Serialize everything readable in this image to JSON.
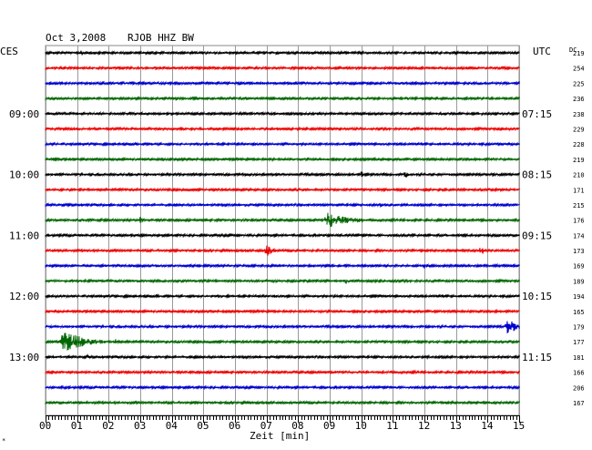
{
  "header": {
    "date": "Oct 3,2008",
    "station": "RJOB HHZ BW",
    "left_tz": "CES",
    "right_tz": "UTC",
    "dc_label": "DC",
    "corner_mark": "*"
  },
  "chart_data": {
    "type": "line",
    "title": "Oct 3,2008   RJOB HHZ BW",
    "xlabel": "Zeit [min]",
    "x_ticks": [
      "00",
      "01",
      "02",
      "03",
      "04",
      "05",
      "06",
      "07",
      "08",
      "09",
      "10",
      "11",
      "12",
      "13",
      "14",
      "15"
    ],
    "xlim": [
      0,
      15
    ],
    "grid": true,
    "trace_colors": [
      "#000000",
      "#ee0000",
      "#0000cc",
      "#006600"
    ],
    "local_hour_labels": [
      {
        "row": 4,
        "text": "09:00"
      },
      {
        "row": 8,
        "text": "10:00"
      },
      {
        "row": 12,
        "text": "11:00"
      },
      {
        "row": 16,
        "text": "12:00"
      },
      {
        "row": 20,
        "text": "13:00"
      }
    ],
    "utc_hour_labels": [
      {
        "row": 4,
        "text": "07:15"
      },
      {
        "row": 8,
        "text": "08:15"
      },
      {
        "row": 12,
        "text": "09:15"
      },
      {
        "row": 16,
        "text": "10:15"
      },
      {
        "row": 20,
        "text": "11:15"
      }
    ],
    "dc_offsets": [
      219,
      254,
      225,
      236,
      238,
      229,
      228,
      219,
      210,
      171,
      215,
      176,
      174,
      173,
      169,
      189,
      194,
      165,
      179,
      177,
      181,
      166,
      206,
      167
    ],
    "events": [
      {
        "row": 0,
        "minute": 1.1,
        "amp": 5,
        "dur": 0.15
      },
      {
        "row": 5,
        "minute": 4.3,
        "amp": 5,
        "dur": 0.15
      },
      {
        "row": 7,
        "minute": 0.3,
        "amp": 5,
        "dur": 0.15
      },
      {
        "row": 8,
        "minute": 10.0,
        "amp": 4,
        "dur": 0.2
      },
      {
        "row": 8,
        "minute": 11.4,
        "amp": 7,
        "dur": 0.1
      },
      {
        "row": 10,
        "minute": 10.6,
        "amp": 3,
        "dur": 0.2
      },
      {
        "row": 11,
        "minute": 8.9,
        "amp": 9,
        "dur": 1.5
      },
      {
        "row": 11,
        "minute": 3.0,
        "amp": 5,
        "dur": 0.1
      },
      {
        "row": 13,
        "minute": 7.0,
        "amp": 8,
        "dur": 0.35
      },
      {
        "row": 13,
        "minute": 13.8,
        "amp": 9,
        "dur": 0.1
      },
      {
        "row": 14,
        "minute": 12.0,
        "amp": 3,
        "dur": 0.4
      },
      {
        "row": 15,
        "minute": 9.5,
        "amp": 6,
        "dur": 0.15
      },
      {
        "row": 18,
        "minute": 14.6,
        "amp": 11,
        "dur": 0.6
      },
      {
        "row": 19,
        "minute": 0.5,
        "amp": 14,
        "dur": 1.5
      },
      {
        "row": 19,
        "minute": 2.2,
        "amp": 4,
        "dur": 0.2
      },
      {
        "row": 20,
        "minute": 1.3,
        "amp": 3,
        "dur": 0.2
      },
      {
        "row": 21,
        "minute": 0.2,
        "amp": 3,
        "dur": 0.2
      }
    ]
  }
}
